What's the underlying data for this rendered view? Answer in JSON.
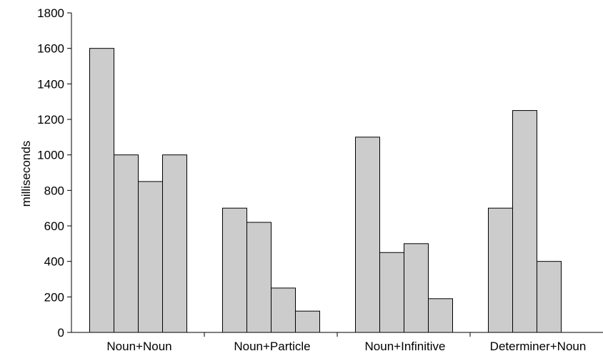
{
  "chart_data": {
    "type": "bar",
    "title": "",
    "xlabel": "",
    "ylabel": "milliseconds",
    "ylim": [
      0,
      1800
    ],
    "yticks": [
      0,
      200,
      400,
      600,
      800,
      1000,
      1200,
      1400,
      1600,
      1800
    ],
    "grid": false,
    "legend": "none",
    "bar_color": "#cccccc",
    "groups": [
      {
        "category": "Noun+Noun",
        "values": [
          1600,
          1000,
          850,
          1000
        ]
      },
      {
        "category": "Noun+Particle",
        "values": [
          700,
          620,
          250,
          120
        ]
      },
      {
        "category": "Noun+Infinitive",
        "values": [
          1100,
          450,
          500,
          190
        ]
      },
      {
        "category": "Determiner+Noun",
        "values": [
          700,
          1250,
          400
        ]
      }
    ]
  }
}
